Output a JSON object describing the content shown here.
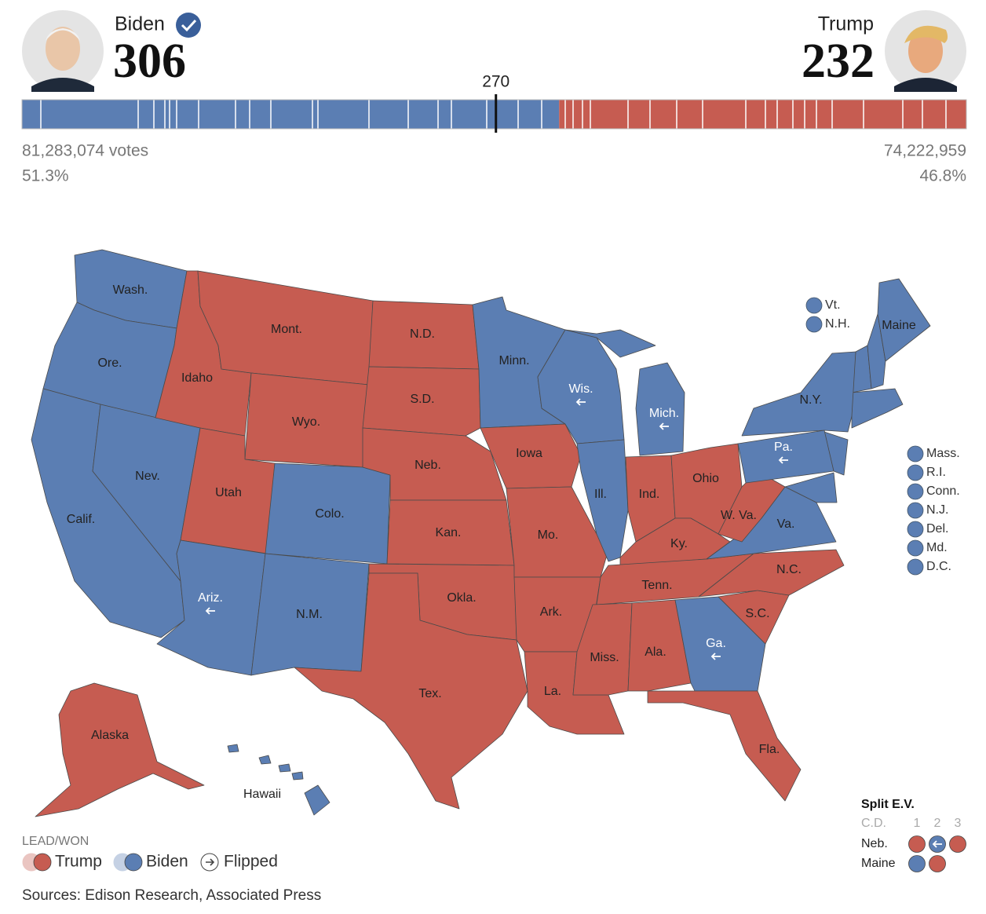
{
  "header": {
    "candidates": [
      {
        "name": "Biden",
        "electoral_votes": 306,
        "votes": "81,283,074 votes",
        "percent": "51.3%",
        "color": "#5b7eb3",
        "winner": true
      },
      {
        "name": "Trump",
        "electoral_votes": 232,
        "votes": "74,222,959",
        "percent": "46.8%",
        "color": "#c65c51"
      }
    ],
    "threshold": 270
  },
  "map": {
    "states": [
      {
        "label": "Wash.",
        "color": "#5b7eb3"
      },
      {
        "label": "Ore.",
        "color": "#5b7eb3"
      },
      {
        "label": "Calif.",
        "color": "#5b7eb3"
      },
      {
        "label": "Nev.",
        "color": "#5b7eb3"
      },
      {
        "label": "Idaho",
        "color": "#c65c51"
      },
      {
        "label": "Mont.",
        "color": "#c65c51"
      },
      {
        "label": "Wyo.",
        "color": "#c65c51"
      },
      {
        "label": "Utah",
        "color": "#c65c51"
      },
      {
        "label": "Colo.",
        "color": "#5b7eb3"
      },
      {
        "label": "Ariz.",
        "color": "#5b7eb3",
        "flipped": true
      },
      {
        "label": "N.M.",
        "color": "#5b7eb3"
      },
      {
        "label": "N.D.",
        "color": "#c65c51"
      },
      {
        "label": "S.D.",
        "color": "#c65c51"
      },
      {
        "label": "Neb.",
        "color": "#c65c51"
      },
      {
        "label": "Kan.",
        "color": "#c65c51"
      },
      {
        "label": "Okla.",
        "color": "#c65c51"
      },
      {
        "label": "Tex.",
        "color": "#c65c51"
      },
      {
        "label": "Minn.",
        "color": "#5b7eb3"
      },
      {
        "label": "Iowa",
        "color": "#c65c51"
      },
      {
        "label": "Mo.",
        "color": "#c65c51"
      },
      {
        "label": "Ark.",
        "color": "#c65c51"
      },
      {
        "label": "La.",
        "color": "#c65c51"
      },
      {
        "label": "Wis.",
        "color": "#5b7eb3",
        "flipped": true
      },
      {
        "label": "Ill.",
        "color": "#5b7eb3"
      },
      {
        "label": "Mich.",
        "color": "#5b7eb3",
        "flipped": true
      },
      {
        "label": "Ind.",
        "color": "#c65c51"
      },
      {
        "label": "Ohio",
        "color": "#c65c51"
      },
      {
        "label": "Ky.",
        "color": "#c65c51"
      },
      {
        "label": "Tenn.",
        "color": "#c65c51"
      },
      {
        "label": "Miss.",
        "color": "#c65c51"
      },
      {
        "label": "Ala.",
        "color": "#c65c51"
      },
      {
        "label": "Ga.",
        "color": "#5b7eb3",
        "flipped": true
      },
      {
        "label": "Fla.",
        "color": "#c65c51"
      },
      {
        "label": "S.C.",
        "color": "#c65c51"
      },
      {
        "label": "N.C.",
        "color": "#c65c51"
      },
      {
        "label": "Va.",
        "color": "#5b7eb3"
      },
      {
        "label": "W. Va.",
        "color": "#c65c51"
      },
      {
        "label": "Pa.",
        "color": "#5b7eb3",
        "flipped": true
      },
      {
        "label": "N.Y.",
        "color": "#5b7eb3"
      },
      {
        "label": "Maine",
        "color": "#5b7eb3"
      },
      {
        "label": "Alaska",
        "color": "#c65c51"
      },
      {
        "label": "Hawaii",
        "color": "#5b7eb3"
      }
    ],
    "small_states": [
      {
        "label": "Vt.",
        "color": "#5b7eb3"
      },
      {
        "label": "N.H.",
        "color": "#5b7eb3"
      },
      {
        "label": "Mass.",
        "color": "#5b7eb3"
      },
      {
        "label": "R.I.",
        "color": "#5b7eb3"
      },
      {
        "label": "Conn.",
        "color": "#5b7eb3"
      },
      {
        "label": "N.J.",
        "color": "#5b7eb3"
      },
      {
        "label": "Del.",
        "color": "#5b7eb3"
      },
      {
        "label": "Md.",
        "color": "#5b7eb3"
      },
      {
        "label": "D.C.",
        "color": "#5b7eb3"
      }
    ]
  },
  "legend": {
    "title": "LEAD/WON",
    "items": [
      {
        "label": "Trump",
        "color": "#c65c51"
      },
      {
        "label": "Biden",
        "color": "#5b7eb3"
      },
      {
        "label": "Flipped"
      }
    ]
  },
  "split_ev": {
    "title": "Split E.V.",
    "header": "C.D.",
    "districts": [
      1,
      2,
      3
    ],
    "rows": [
      {
        "state": "Neb.",
        "districts": [
          {
            "color": "#c65c51"
          },
          {
            "color": "#5b7eb3",
            "flipped": true
          },
          {
            "color": "#c65c51"
          }
        ]
      },
      {
        "state": "Maine",
        "districts": [
          {
            "color": "#5b7eb3"
          },
          {
            "color": "#c65c51"
          }
        ]
      }
    ]
  },
  "source": "Sources: Edison Research, Associated Press"
}
